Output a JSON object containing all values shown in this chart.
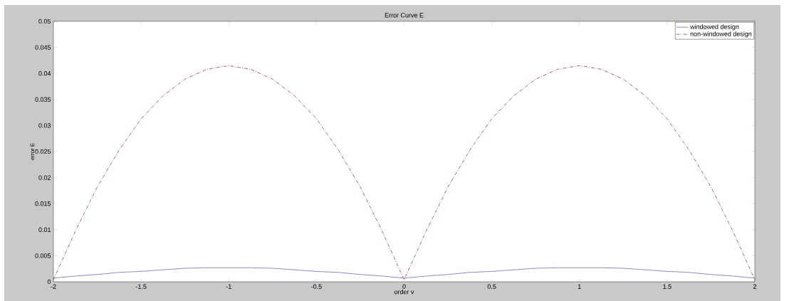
{
  "chart_data": {
    "type": "line",
    "title": "Error Curve E",
    "xlabel": "order v",
    "ylabel": "error E",
    "x": [
      -2,
      -1.875,
      -1.75,
      -1.625,
      -1.5,
      -1.375,
      -1.25,
      -1.125,
      -1,
      -0.875,
      -0.75,
      -0.625,
      -0.5,
      -0.375,
      -0.25,
      -0.125,
      0,
      0.125,
      0.25,
      0.375,
      0.5,
      0.625,
      0.75,
      0.875,
      1,
      1.125,
      1.25,
      1.375,
      1.5,
      1.625,
      1.75,
      1.875,
      2
    ],
    "series": [
      {
        "name": "windowed design",
        "color": "#6b6fb5",
        "line_style": "solid",
        "values": [
          0.0007,
          0.0011,
          0.0014,
          0.0018,
          0.002,
          0.0023,
          0.0026,
          0.0027,
          0.0027,
          0.0027,
          0.0026,
          0.0023,
          0.002,
          0.0018,
          0.0014,
          0.0011,
          0.0007,
          0.0011,
          0.0014,
          0.0018,
          0.002,
          0.0023,
          0.0026,
          0.0027,
          0.0027,
          0.0027,
          0.0026,
          0.0023,
          0.002,
          0.0018,
          0.0014,
          0.0011,
          0.0007
        ]
      },
      {
        "name": "non-windowed design",
        "color": "#a0403a",
        "line_style": "dashdot",
        "values": [
          0.0004,
          0.0097,
          0.0182,
          0.0253,
          0.0313,
          0.0357,
          0.0389,
          0.0408,
          0.0415,
          0.0408,
          0.0389,
          0.0357,
          0.0313,
          0.0253,
          0.0182,
          0.0097,
          0.0004,
          0.0097,
          0.0182,
          0.0253,
          0.0313,
          0.0357,
          0.0389,
          0.0408,
          0.0415,
          0.0408,
          0.0389,
          0.0357,
          0.0313,
          0.0253,
          0.0182,
          0.0097,
          0.0004
        ]
      }
    ],
    "xlim": [
      -2,
      2
    ],
    "ylim": [
      0,
      0.05
    ],
    "xticks": [
      -2,
      -1.5,
      -1,
      -0.5,
      0,
      0.5,
      1,
      1.5,
      2
    ],
    "yticks": [
      0,
      0.005,
      0.01,
      0.015,
      0.02,
      0.025,
      0.03,
      0.035,
      0.04,
      0.045,
      0.05
    ],
    "grid": false,
    "legend": "top right",
    "marker": "none"
  }
}
